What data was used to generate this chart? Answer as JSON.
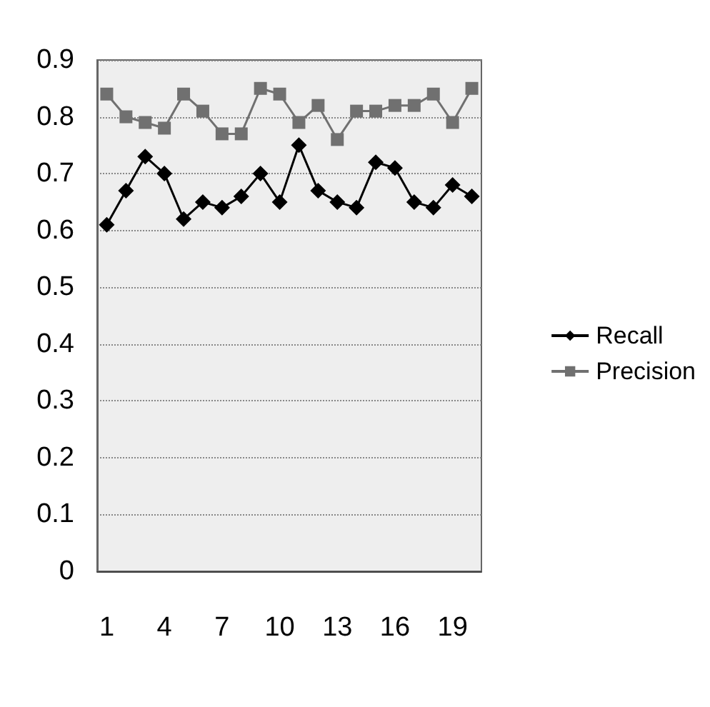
{
  "chart_data": {
    "type": "line",
    "categories": [
      "1",
      null,
      null,
      "4",
      null,
      null,
      "7",
      null,
      null,
      "10",
      null,
      null,
      "13",
      null,
      null,
      "16",
      null,
      null,
      "19",
      null
    ],
    "series": [
      {
        "name": "Recall",
        "color": "#000000",
        "marker": "diamond",
        "values": [
          0.61,
          0.67,
          0.73,
          0.7,
          0.62,
          0.65,
          0.64,
          0.66,
          0.7,
          0.65,
          0.75,
          0.67,
          0.65,
          0.64,
          0.72,
          0.71,
          0.65,
          0.64,
          0.68,
          0.66
        ]
      },
      {
        "name": "Precision",
        "color": "#707070",
        "marker": "square",
        "values": [
          0.84,
          0.8,
          0.79,
          0.78,
          0.84,
          0.81,
          0.77,
          0.77,
          0.85,
          0.84,
          0.79,
          0.82,
          0.76,
          0.81,
          0.81,
          0.82,
          0.82,
          0.84,
          0.79,
          0.85
        ]
      }
    ],
    "ylim": [
      0,
      0.9
    ],
    "yticks": [
      0,
      0.1,
      0.2,
      0.3,
      0.4,
      0.5,
      0.6,
      0.7,
      0.8,
      0.9
    ],
    "grid": "y",
    "legend": "right",
    "line_style": "solid"
  }
}
